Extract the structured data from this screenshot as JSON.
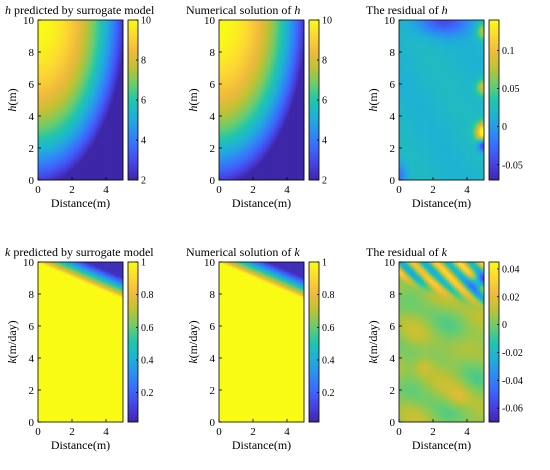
{
  "palette": [
    "#3e26a8",
    "#4742e2",
    "#3c68fc",
    "#2c8ef1",
    "#1fb1d6",
    "#21c5ad",
    "#6dcc6c",
    "#bcc235",
    "#efba3b",
    "#fcd633",
    "#f9fb15"
  ],
  "chart_data": [
    {
      "type": "heatmap",
      "title_var": "h",
      "title_rest": " predicted by surrogate model",
      "xlabel": "Distance(m)",
      "ylabel_var": "h",
      "ylabel_rest": "(m)",
      "xlim": [
        0,
        5
      ],
      "ylim": [
        0,
        10
      ],
      "xticks": [
        0,
        2,
        4
      ],
      "yticks": [
        0,
        2,
        4,
        6,
        8,
        10
      ],
      "colorbar": {
        "range": [
          2,
          10
        ],
        "ticks": [
          2,
          4,
          6,
          8,
          10
        ]
      },
      "field": "h"
    },
    {
      "type": "heatmap",
      "title_prefix": "Numerical solution of ",
      "title_var": "h",
      "xlabel": "Distance(m)",
      "ylabel_var": "h",
      "ylabel_rest": "(m)",
      "xlim": [
        0,
        5
      ],
      "ylim": [
        0,
        10
      ],
      "xticks": [
        0,
        2,
        4
      ],
      "yticks": [
        0,
        2,
        4,
        6,
        8,
        10
      ],
      "colorbar": {
        "range": [
          2,
          10
        ],
        "ticks": [
          2,
          4,
          6,
          8,
          10
        ]
      },
      "field": "h"
    },
    {
      "type": "heatmap",
      "title_prefix": "The residual of ",
      "title_var": "h",
      "xlabel": "Distance(m)",
      "ylabel_var": "h",
      "ylabel_rest": "(m)",
      "xlim": [
        0,
        5
      ],
      "ylim": [
        0,
        10
      ],
      "xticks": [
        0,
        2,
        4
      ],
      "yticks": [
        0,
        2,
        4,
        6,
        8,
        10
      ],
      "colorbar": {
        "range": [
          -0.07,
          0.14
        ],
        "ticks": [
          -0.05,
          0,
          0.05,
          0.1
        ],
        "tick_labels": [
          "-0.05",
          "0",
          "0.05",
          "0.1"
        ]
      },
      "field": "h_residual"
    },
    {
      "type": "heatmap",
      "title_var": "k",
      "title_rest": " predicted by surrogate model",
      "xlabel": "Distance(m)",
      "ylabel_var": "k",
      "ylabel_rest": "(m/day)",
      "xlim": [
        0,
        5
      ],
      "ylim": [
        0,
        10
      ],
      "xticks": [
        0,
        2,
        4
      ],
      "yticks": [
        0,
        2,
        4,
        6,
        8,
        10
      ],
      "colorbar": {
        "range": [
          0.02,
          1
        ],
        "ticks": [
          0.2,
          0.4,
          0.6,
          0.8,
          1
        ],
        "tick_labels": [
          "0.2",
          "0.4",
          "0.6",
          "0.8",
          "1"
        ]
      },
      "field": "k"
    },
    {
      "type": "heatmap",
      "title_prefix": "Numerical solution of ",
      "title_var": "k",
      "xlabel": "Distance(m)",
      "ylabel_var": "k",
      "ylabel_rest": "(m/day)",
      "xlim": [
        0,
        5
      ],
      "ylim": [
        0,
        10
      ],
      "xticks": [
        0,
        2,
        4
      ],
      "yticks": [
        0,
        2,
        4,
        6,
        8,
        10
      ],
      "colorbar": {
        "range": [
          0.02,
          1
        ],
        "ticks": [
          0.2,
          0.4,
          0.6,
          0.8,
          1
        ],
        "tick_labels": [
          "0.2",
          "0.4",
          "0.6",
          "0.8",
          "1"
        ]
      },
      "field": "k"
    },
    {
      "type": "heatmap",
      "title_prefix": "The residual of ",
      "title_var": "k",
      "xlabel": "Distance(m)",
      "ylabel_var": "k",
      "ylabel_rest": "(m/day)",
      "xlim": [
        0,
        5
      ],
      "ylim": [
        0,
        10
      ],
      "xticks": [
        0,
        2,
        4
      ],
      "yticks": [
        0,
        2,
        4,
        6,
        8,
        10
      ],
      "colorbar": {
        "range": [
          -0.07,
          0.045
        ],
        "ticks": [
          -0.06,
          -0.04,
          -0.02,
          0,
          0.02,
          0.04
        ],
        "tick_labels": [
          "-0.06",
          "-0.04",
          "-0.02",
          "0",
          "0.02",
          "0.04"
        ]
      },
      "field": "k_residual"
    }
  ]
}
